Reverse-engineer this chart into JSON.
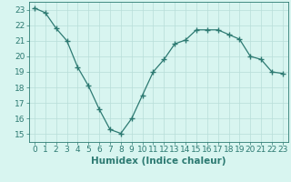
{
  "x": [
    0,
    1,
    2,
    3,
    4,
    5,
    6,
    7,
    8,
    9,
    10,
    11,
    12,
    13,
    14,
    15,
    16,
    17,
    18,
    19,
    20,
    21,
    22,
    23
  ],
  "y": [
    23.1,
    22.8,
    21.8,
    21.0,
    19.3,
    18.1,
    16.6,
    15.3,
    15.05,
    16.0,
    17.5,
    19.0,
    19.8,
    20.8,
    21.05,
    21.7,
    21.7,
    21.7,
    21.4,
    21.1,
    20.0,
    19.8,
    19.0,
    18.9
  ],
  "line_color": "#2d7a72",
  "marker": "+",
  "marker_size": 4,
  "background_color": "#d8f5f0",
  "grid_color": "#b8ddd8",
  "xlabel": "Humidex (Indice chaleur)",
  "xlim": [
    -0.5,
    23.5
  ],
  "ylim": [
    14.5,
    23.5
  ],
  "yticks": [
    15,
    16,
    17,
    18,
    19,
    20,
    21,
    22,
    23
  ],
  "xticks": [
    0,
    1,
    2,
    3,
    4,
    5,
    6,
    7,
    8,
    9,
    10,
    11,
    12,
    13,
    14,
    15,
    16,
    17,
    18,
    19,
    20,
    21,
    22,
    23
  ],
  "tick_color": "#2d7a72",
  "label_color": "#2d7a72",
  "font_size": 6.5,
  "xlabel_fontsize": 7.5
}
